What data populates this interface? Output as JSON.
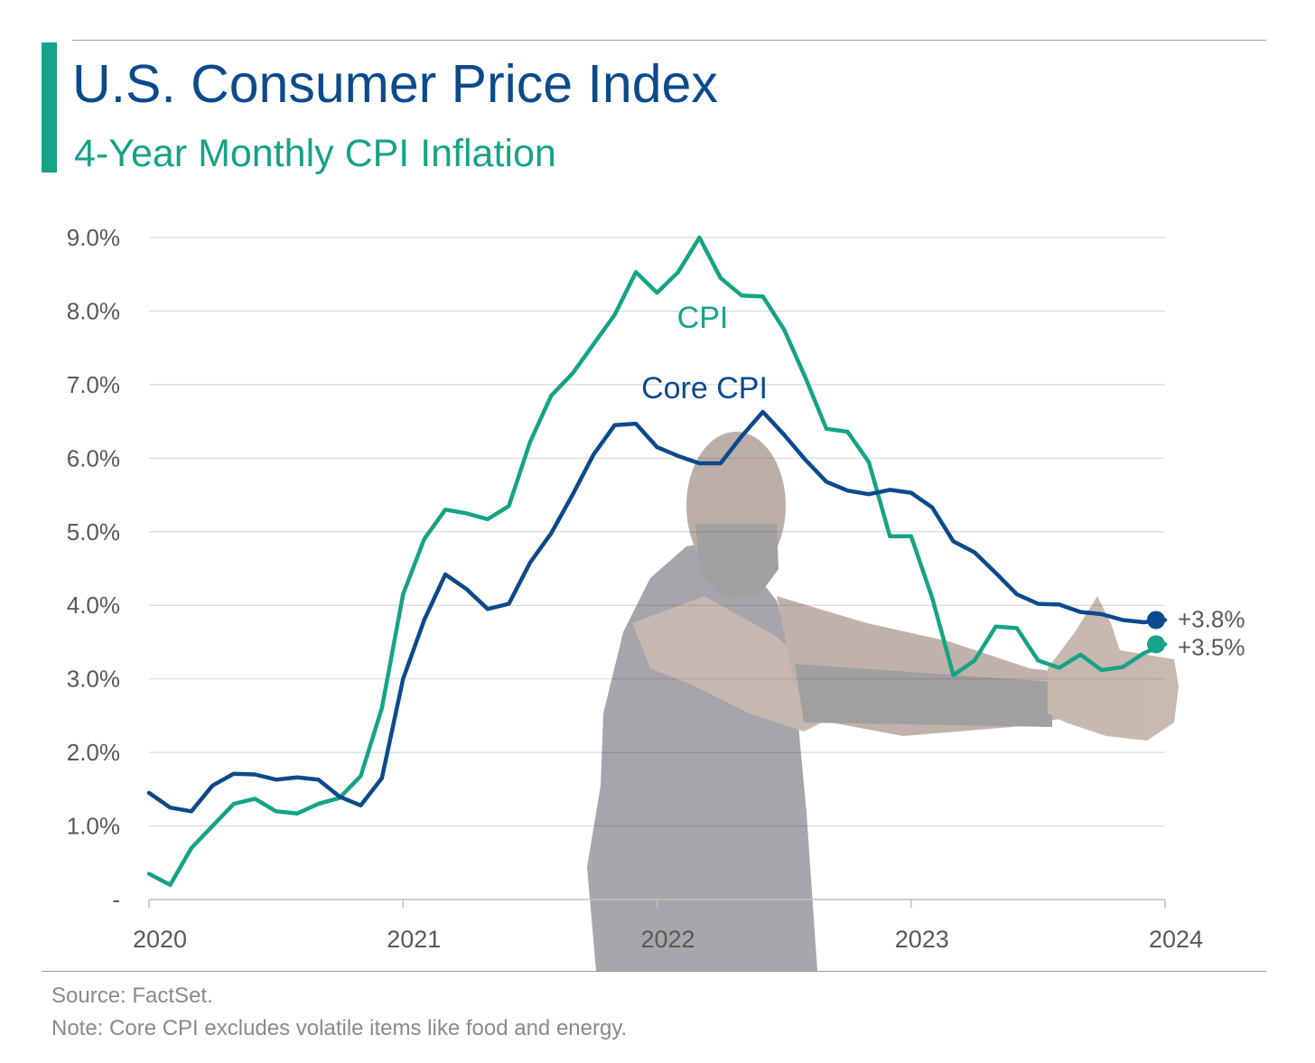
{
  "header": {
    "title": "U.S. Consumer Price Index",
    "subtitle": "4-Year Monthly CPI Inflation"
  },
  "footer": {
    "source": "Source: FactSet.",
    "note": "Note: Core CPI excludes volatile items like food and energy."
  },
  "colors": {
    "title": "#0b4a8b",
    "accent": "#16a386",
    "cpi": "#16a386",
    "core_cpi": "#0b4a8b",
    "grid": "#d9d9d9",
    "axis_text": "#595959",
    "end_label": "#595959"
  },
  "chart_data": {
    "type": "line",
    "title": "U.S. Consumer Price Index",
    "subtitle": "4-Year Monthly CPI Inflation",
    "xlabel": "",
    "ylabel": "",
    "x_ticks": [
      "2020",
      "2021",
      "2022",
      "2023",
      "2024"
    ],
    "y_ticks": [
      {
        "value": 0,
        "label": "-"
      },
      {
        "value": 1,
        "label": "1.0%"
      },
      {
        "value": 2,
        "label": "2.0%"
      },
      {
        "value": 3,
        "label": "3.0%"
      },
      {
        "value": 4,
        "label": "4.0%"
      },
      {
        "value": 5,
        "label": "5.0%"
      },
      {
        "value": 6,
        "label": "6.0%"
      },
      {
        "value": 7,
        "label": "7.0%"
      },
      {
        "value": 8,
        "label": "8.0%"
      },
      {
        "value": 9,
        "label": "9.0%"
      }
    ],
    "ylim": [
      0,
      9
    ],
    "xlim": [
      "2020-01",
      "2024-01"
    ],
    "grid": true,
    "legend": "inline labels",
    "x": [
      "2020-01",
      "2020-02",
      "2020-03",
      "2020-04",
      "2020-05",
      "2020-06",
      "2020-07",
      "2020-08",
      "2020-09",
      "2020-10",
      "2020-11",
      "2020-12",
      "2021-01",
      "2021-02",
      "2021-03",
      "2021-04",
      "2021-05",
      "2021-06",
      "2021-07",
      "2021-08",
      "2021-09",
      "2021-10",
      "2021-11",
      "2021-12",
      "2022-01",
      "2022-02",
      "2022-03",
      "2022-04",
      "2022-05",
      "2022-06",
      "2022-07",
      "2022-08",
      "2022-09",
      "2022-10",
      "2022-11",
      "2022-12",
      "2023-01",
      "2023-02",
      "2023-03",
      "2023-04",
      "2023-05",
      "2023-06",
      "2023-07",
      "2023-08",
      "2023-09",
      "2023-10",
      "2023-11",
      "2023-12",
      "2024-01"
    ],
    "series": [
      {
        "name": "CPI",
        "label": "CPI",
        "color": "#16a386",
        "end_label": "+3.5%",
        "values": [
          0.35,
          0.2,
          0.7,
          1.0,
          1.3,
          1.37,
          1.2,
          1.17,
          1.3,
          1.38,
          1.68,
          2.6,
          4.15,
          4.9,
          5.3,
          5.25,
          5.17,
          5.35,
          6.22,
          6.85,
          7.15,
          7.55,
          7.95,
          8.53,
          8.25,
          8.53,
          9.0,
          8.45,
          8.21,
          8.2,
          7.75,
          7.1,
          6.4,
          6.36,
          5.95,
          4.94,
          4.94,
          4.1,
          3.05,
          3.25,
          3.71,
          3.69,
          3.25,
          3.15,
          3.33,
          3.12,
          3.16,
          3.35,
          3.47
        ]
      },
      {
        "name": "Core CPI",
        "label": "Core CPI",
        "color": "#0b4a8b",
        "end_label": "+3.8%",
        "values": [
          1.45,
          1.25,
          1.2,
          1.55,
          1.71,
          1.7,
          1.63,
          1.66,
          1.63,
          1.4,
          1.28,
          1.65,
          3.0,
          3.8,
          4.42,
          4.22,
          3.95,
          4.02,
          4.58,
          4.98,
          5.5,
          6.05,
          6.45,
          6.47,
          6.15,
          6.03,
          5.93,
          5.93,
          6.3,
          6.63,
          6.32,
          5.98,
          5.68,
          5.56,
          5.51,
          5.57,
          5.53,
          5.33,
          4.87,
          4.72,
          4.44,
          4.15,
          4.02,
          4.01,
          3.91,
          3.88,
          3.8,
          3.77,
          3.8
        ]
      }
    ]
  }
}
